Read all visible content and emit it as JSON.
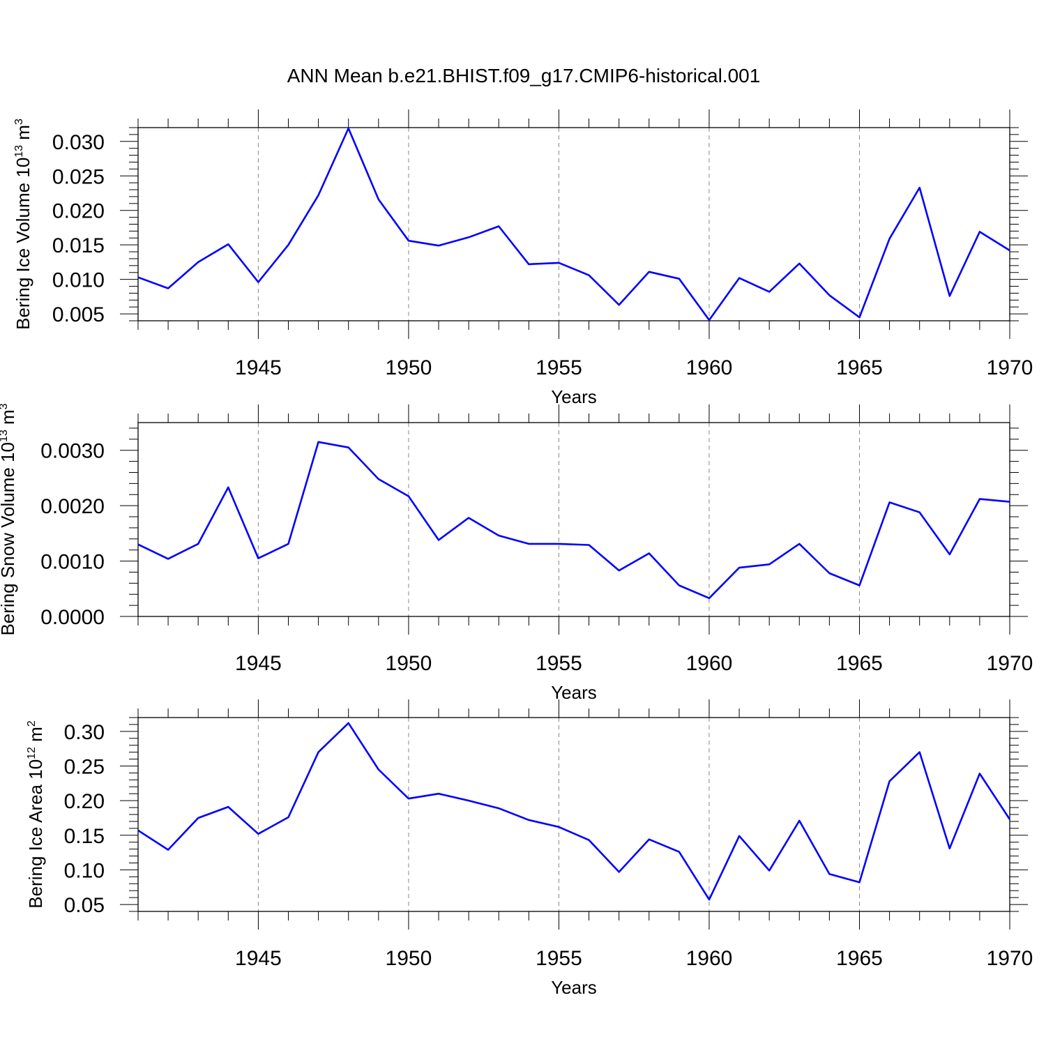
{
  "title": "ANN Mean b.e21.BHIST.f09_g17.CMIP6-historical.001",
  "colors": {
    "line": "#0000ff",
    "axis": "#000000",
    "grid": "#888888",
    "background": "#ffffff"
  },
  "chart_data": [
    {
      "type": "line",
      "xlabel": "Years",
      "ylabel": {
        "text": "Bering Ice Volume 10",
        "exp": "13",
        "unit": " m",
        "unit_exp": "3"
      },
      "xlim": [
        1941,
        1970
      ],
      "ylim": [
        0.004,
        0.032
      ],
      "xticks": [
        1945,
        1950,
        1955,
        1960,
        1965,
        1970
      ],
      "yticks": [
        "0.005",
        "0.010",
        "0.015",
        "0.020",
        "0.025",
        "0.030"
      ],
      "grid": "dashed vertical at major x ticks",
      "x": [
        1941,
        1942,
        1943,
        1944,
        1945,
        1946,
        1947,
        1948,
        1949,
        1950,
        1951,
        1952,
        1953,
        1954,
        1955,
        1956,
        1957,
        1958,
        1959,
        1960,
        1961,
        1962,
        1963,
        1964,
        1965,
        1966,
        1967,
        1968,
        1969,
        1970
      ],
      "y": [
        0.0103,
        0.0087,
        0.0125,
        0.0151,
        0.0096,
        0.015,
        0.0222,
        0.0319,
        0.0216,
        0.0156,
        0.0149,
        0.0161,
        0.0177,
        0.0122,
        0.0124,
        0.0106,
        0.0063,
        0.0111,
        0.0101,
        0.0041,
        0.0102,
        0.0082,
        0.0123,
        0.0077,
        0.0045,
        0.0159,
        0.0233,
        0.0076,
        0.0169,
        0.0142
      ]
    },
    {
      "type": "line",
      "xlabel": "Years",
      "ylabel": {
        "text": "Bering Snow Volume 10",
        "exp": "13",
        "unit": " m",
        "unit_exp": "3"
      },
      "xlim": [
        1941,
        1970
      ],
      "ylim": [
        0.0,
        0.0035
      ],
      "xticks": [
        1945,
        1950,
        1955,
        1960,
        1965,
        1970
      ],
      "yticks": [
        "0.0000",
        "0.0010",
        "0.0020",
        "0.0030"
      ],
      "grid": "dashed vertical at major x ticks",
      "x": [
        1941,
        1942,
        1943,
        1944,
        1945,
        1946,
        1947,
        1948,
        1949,
        1950,
        1951,
        1952,
        1953,
        1954,
        1955,
        1956,
        1957,
        1958,
        1959,
        1960,
        1961,
        1962,
        1963,
        1964,
        1965,
        1966,
        1967,
        1968,
        1969,
        1970
      ],
      "y": [
        0.0013,
        0.00104,
        0.00131,
        0.00233,
        0.00105,
        0.00131,
        0.00315,
        0.00305,
        0.00248,
        0.00217,
        0.00138,
        0.00178,
        0.00146,
        0.00131,
        0.00131,
        0.00129,
        0.00083,
        0.00114,
        0.00056,
        0.00033,
        0.00088,
        0.00094,
        0.00131,
        0.00078,
        0.00056,
        0.00206,
        0.00188,
        0.00112,
        0.00212,
        0.00207
      ]
    },
    {
      "type": "line",
      "xlabel": "Years",
      "ylabel": {
        "text": "Bering Ice Area 10",
        "exp": "12",
        "unit": " m",
        "unit_exp": "2"
      },
      "xlim": [
        1941,
        1970
      ],
      "ylim": [
        0.04,
        0.32
      ],
      "xticks": [
        1945,
        1950,
        1955,
        1960,
        1965,
        1970
      ],
      "yticks": [
        "0.05",
        "0.10",
        "0.15",
        "0.20",
        "0.25",
        "0.30"
      ],
      "grid": "dashed vertical at major x ticks",
      "x": [
        1941,
        1942,
        1943,
        1944,
        1945,
        1946,
        1947,
        1948,
        1949,
        1950,
        1951,
        1952,
        1953,
        1954,
        1955,
        1956,
        1957,
        1958,
        1959,
        1960,
        1961,
        1962,
        1963,
        1964,
        1965,
        1966,
        1967,
        1968,
        1969,
        1970
      ],
      "y": [
        0.157,
        0.129,
        0.175,
        0.191,
        0.152,
        0.176,
        0.27,
        0.312,
        0.245,
        0.203,
        0.21,
        0.2,
        0.189,
        0.172,
        0.162,
        0.143,
        0.097,
        0.144,
        0.126,
        0.057,
        0.149,
        0.099,
        0.171,
        0.094,
        0.082,
        0.228,
        0.27,
        0.131,
        0.239,
        0.173
      ]
    }
  ]
}
